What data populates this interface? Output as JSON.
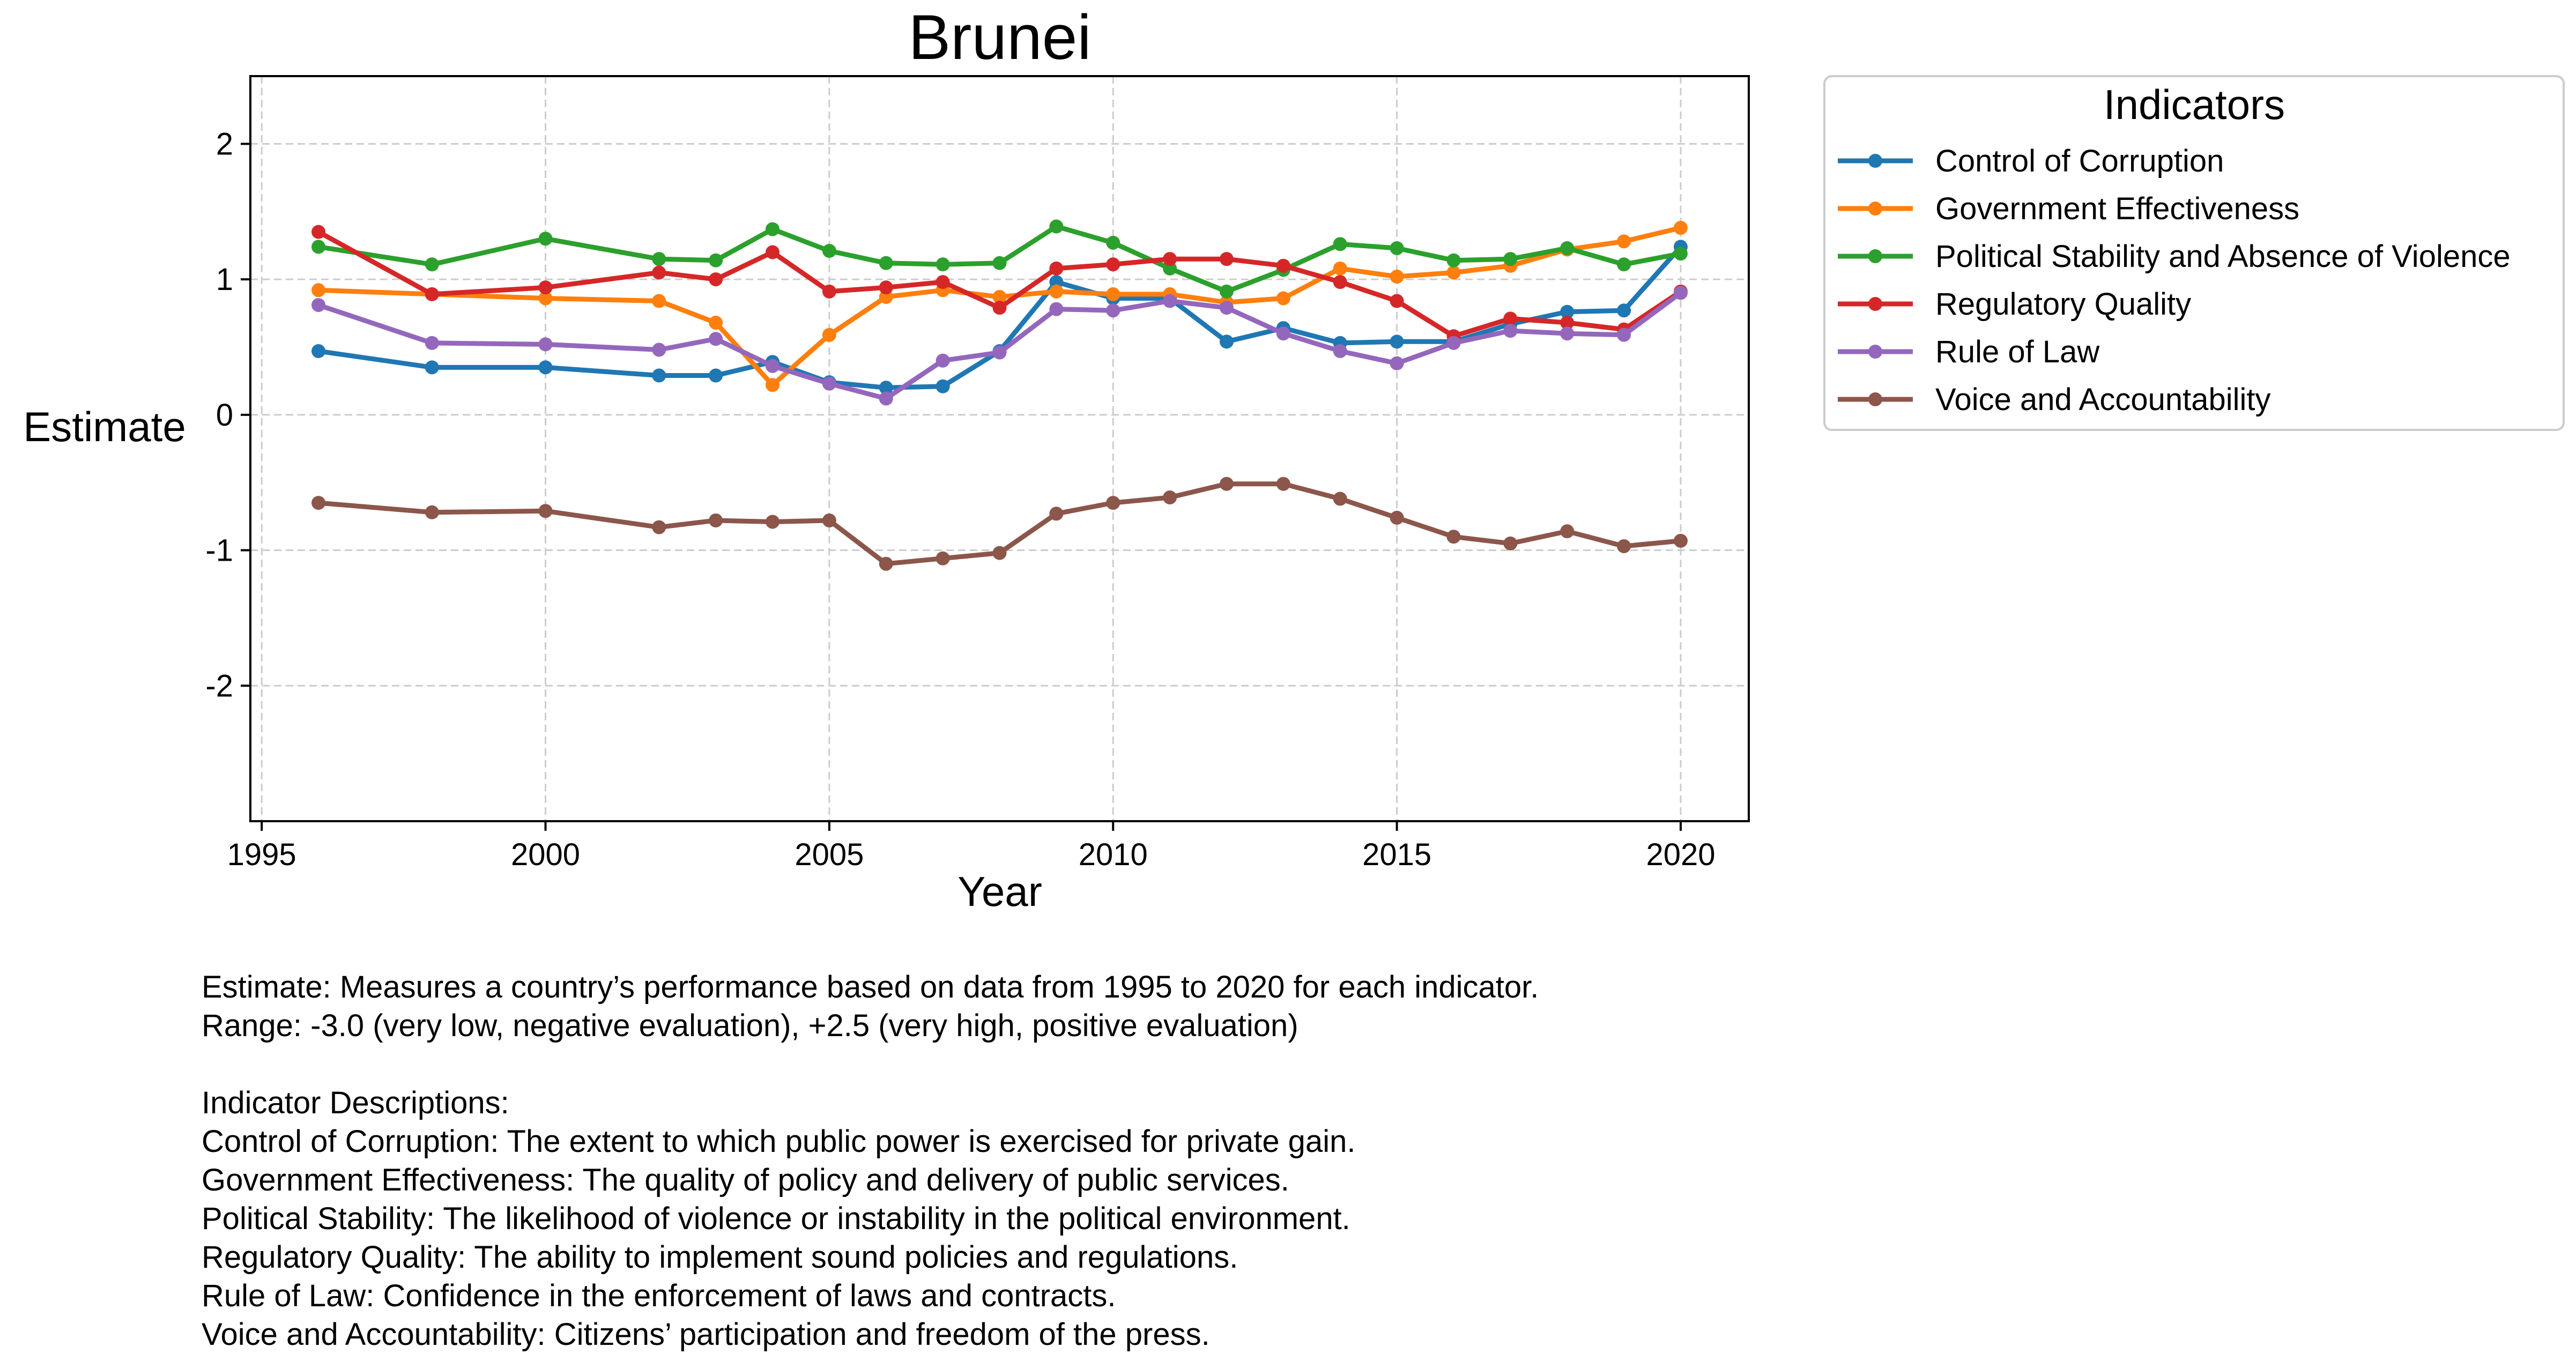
{
  "chart_data": {
    "type": "line",
    "title": "Brunei",
    "xlabel": "Year",
    "ylabel": "Estimate",
    "xlim": [
      1994.8,
      2021.2
    ],
    "ylim": [
      -3.0,
      2.5
    ],
    "xticks": [
      1995,
      2000,
      2005,
      2010,
      2015,
      2020
    ],
    "yticks": [
      2,
      1,
      0,
      -1,
      -2
    ],
    "ytick_labels": [
      "2",
      "1",
      "0",
      "-1",
      "-2"
    ],
    "grid": true,
    "legend": {
      "title": "Indicators",
      "placement": "outside-top-right"
    },
    "x": [
      1996,
      1998,
      2000,
      2002,
      2003,
      2004,
      2005,
      2006,
      2007,
      2008,
      2009,
      2010,
      2011,
      2012,
      2013,
      2014,
      2015,
      2016,
      2017,
      2018,
      2019,
      2020
    ],
    "series": [
      {
        "name": "Control of Corruption",
        "color": "#1f77b4",
        "values": [
          0.47,
          0.35,
          0.35,
          0.29,
          0.29,
          0.39,
          0.24,
          0.2,
          0.21,
          0.47,
          0.98,
          0.86,
          0.86,
          0.54,
          0.64,
          0.53,
          0.54,
          0.54,
          0.67,
          0.76,
          0.77,
          1.24
        ]
      },
      {
        "name": "Government Effectiveness",
        "color": "#ff7f0e",
        "values": [
          0.92,
          0.89,
          0.86,
          0.84,
          0.68,
          0.22,
          0.59,
          0.87,
          0.92,
          0.87,
          0.91,
          0.89,
          0.89,
          0.83,
          0.86,
          1.08,
          1.02,
          1.05,
          1.1,
          1.22,
          1.28,
          1.38
        ]
      },
      {
        "name": "Political Stability and Absence of Violence",
        "color": "#2ca02c",
        "values": [
          1.24,
          1.11,
          1.3,
          1.15,
          1.14,
          1.37,
          1.21,
          1.12,
          1.11,
          1.12,
          1.39,
          1.27,
          1.08,
          0.91,
          1.07,
          1.26,
          1.23,
          1.14,
          1.15,
          1.23,
          1.11,
          1.19
        ]
      },
      {
        "name": "Regulatory Quality",
        "color": "#d62728",
        "values": [
          1.35,
          0.89,
          0.94,
          1.05,
          1.0,
          1.2,
          0.91,
          0.94,
          0.98,
          0.79,
          1.08,
          1.11,
          1.15,
          1.15,
          1.1,
          0.98,
          0.84,
          0.58,
          0.71,
          0.68,
          0.63,
          0.91
        ]
      },
      {
        "name": "Rule of Law",
        "color": "#9467bd",
        "values": [
          0.81,
          0.53,
          0.52,
          0.48,
          0.56,
          0.36,
          0.23,
          0.12,
          0.4,
          0.46,
          0.78,
          0.77,
          0.84,
          0.79,
          0.6,
          0.47,
          0.38,
          0.53,
          0.62,
          0.6,
          0.59,
          0.9
        ]
      },
      {
        "name": "Voice and Accountability",
        "color": "#8c564b",
        "values": [
          -0.65,
          -0.72,
          -0.71,
          -0.83,
          -0.78,
          -0.79,
          -0.78,
          -1.1,
          -1.06,
          -1.02,
          -0.73,
          -0.65,
          -0.61,
          -0.51,
          -0.51,
          -0.62,
          -0.76,
          -0.9,
          -0.95,
          -0.86,
          -0.97,
          -0.93
        ]
      }
    ]
  },
  "notes": [
    "Estimate: Measures a country’s performance based on data from 1995 to 2020 for each indicator.",
    "Range: -3.0 (very low, negative evaluation), +2.5 (very high, positive evaluation)",
    "",
    "Indicator Descriptions:",
    "Control of Corruption: The extent to which public power is exercised for private gain.",
    "Government Effectiveness: The quality of policy and delivery of public services.",
    "Political Stability: The likelihood of violence or instability in the political environment.",
    "Regulatory Quality: The ability to implement sound policies and regulations.",
    "Rule of Law: Confidence in the enforcement of laws and contracts.",
    "Voice and Accountability: Citizens’ participation and freedom of the press."
  ]
}
